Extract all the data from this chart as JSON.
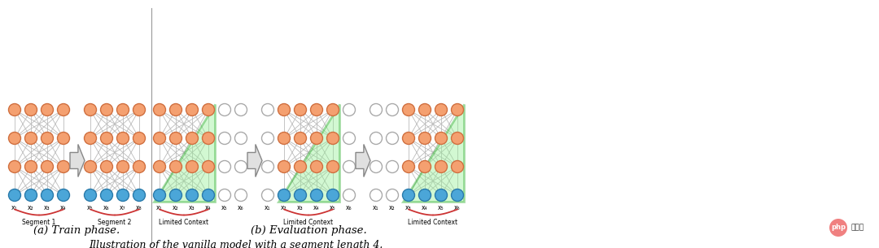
{
  "bg_color": "#ffffff",
  "node_orange_fc": "#F4A070",
  "node_orange_ec": "#d07040",
  "node_blue_fc": "#4BA6D8",
  "node_blue_ec": "#2a7aaa",
  "node_empty_fc": "#ffffff",
  "node_empty_ec": "#aaaaaa",
  "green_fill": "#90EE90",
  "green_line": "#22aa22",
  "connection_color": "#bbbbbb",
  "brace_color": "#cc3333",
  "divider_color": "#999999",
  "arrow_fc": "#e0e0e0",
  "arrow_ec": "#888888",
  "title_text": "Illustration of the vanilla model with a segment length 4.",
  "train_label": "(a) Train phase.",
  "eval_label": "(b) Evaluation phase.",
  "seg1_label": "Segment 1",
  "seg2_label": "Segment 2",
  "limited_context": "Limited Context",
  "xlabels_s1": [
    "x₁",
    "x₂",
    "x₃",
    "x₄"
  ],
  "xlabels_s2": [
    "x₅",
    "x₆",
    "x₇",
    "x₈"
  ],
  "xlabels_e1": [
    "x₁",
    "x₂",
    "x₃",
    "x₄",
    "x₅",
    "x₆"
  ],
  "xlabels_e2": [
    "x₁",
    "x₂",
    "x₃",
    "x₄",
    "x₅",
    "x₆"
  ],
  "xlabels_e3": [
    "x₁",
    "x₂",
    "x₃",
    "x₄",
    "x₅",
    "x₆"
  ],
  "fig_width": 10.8,
  "fig_height": 3.05
}
